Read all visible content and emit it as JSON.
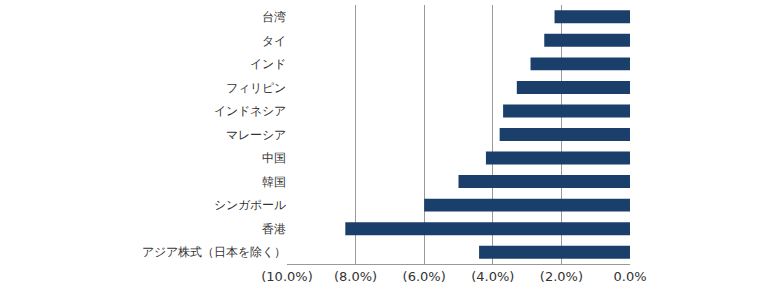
{
  "chart_data": {
    "type": "bar",
    "orientation": "horizontal",
    "categories": [
      "台湾",
      "タイ",
      "インド",
      "フィリピン",
      "インドネシア",
      "マレーシア",
      "中国",
      "韓国",
      "シンガポール",
      "香港",
      "アジア株式（日本を除く）"
    ],
    "values": [
      -2.2,
      -2.5,
      -2.9,
      -3.3,
      -3.7,
      -3.8,
      -4.2,
      -5.0,
      -6.0,
      -8.3,
      -4.4
    ],
    "color": "#1b3f6b",
    "xlim": [
      -10,
      0
    ],
    "xticks": [
      {
        "value": -10,
        "label": "(10.0%)"
      },
      {
        "value": -8,
        "label": "(8.0%)"
      },
      {
        "value": -6,
        "label": "(6.0%)"
      },
      {
        "value": -4,
        "label": "(4.0%)"
      },
      {
        "value": -2,
        "label": "(2.0%)"
      },
      {
        "value": 0,
        "label": "0.0%"
      }
    ],
    "grid": true
  }
}
